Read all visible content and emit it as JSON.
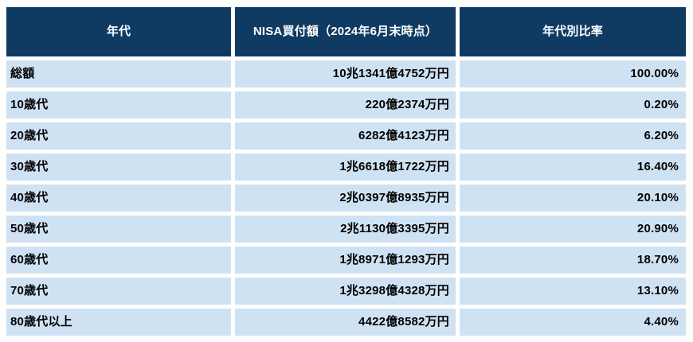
{
  "colors": {
    "header_bg": "#0F3B63",
    "header_text": "#FFFFFF",
    "row_bg": "#CFE2F3",
    "row_text": "#000000",
    "gap": "#FFFFFF"
  },
  "table": {
    "columns": [
      "年代",
      "NISA買付額（2024年6月末時点）",
      "年代別比率"
    ],
    "rows": [
      [
        "総額",
        "10兆1341億4752万円",
        "100.00%"
      ],
      [
        "10歳代",
        "220億2374万円",
        "0.20%"
      ],
      [
        "20歳代",
        "6282億4123万円",
        "6.20%"
      ],
      [
        "30歳代",
        "1兆6618億1722万円",
        "16.40%"
      ],
      [
        "40歳代",
        "2兆0397億8935万円",
        "20.10%"
      ],
      [
        "50歳代",
        "2兆1130億3395万円",
        "20.90%"
      ],
      [
        "60歳代",
        "1兆8971億1293万円",
        "18.70%"
      ],
      [
        "70歳代",
        "1兆3298億4328万円",
        "13.10%"
      ],
      [
        "80歳代以上",
        "4422億8582万円",
        "4.40%"
      ]
    ]
  },
  "chart_data": {
    "type": "table",
    "title": "NISA買付額（2024年6月末時点）",
    "columns": [
      "年代",
      "NISA買付額（2024年6月末時点）",
      "年代別比率"
    ],
    "categories": [
      "総額",
      "10歳代",
      "20歳代",
      "30歳代",
      "40歳代",
      "50歳代",
      "60歳代",
      "70歳代",
      "80歳代以上"
    ],
    "amounts_text": [
      "10兆1341億4752万円",
      "220億2374万円",
      "6282億4123万円",
      "1兆6618億1722万円",
      "2兆0397億8935万円",
      "2兆1130億3395万円",
      "1兆8971億1293万円",
      "1兆3298億4328万円",
      "4422億8582万円"
    ],
    "amounts_oku_yen": [
      101341.4752,
      220.2374,
      6282.4123,
      16618.1722,
      20397.8935,
      21130.3395,
      18971.1293,
      13298.4328,
      4422.8582
    ],
    "ratio_percent": [
      100.0,
      0.2,
      6.2,
      16.4,
      20.1,
      20.9,
      18.7,
      13.1,
      4.4
    ],
    "layout": {
      "header_style": "dark-navy",
      "row_style": "light-blue-striped",
      "amount_align": "right",
      "ratio_align": "right"
    }
  }
}
